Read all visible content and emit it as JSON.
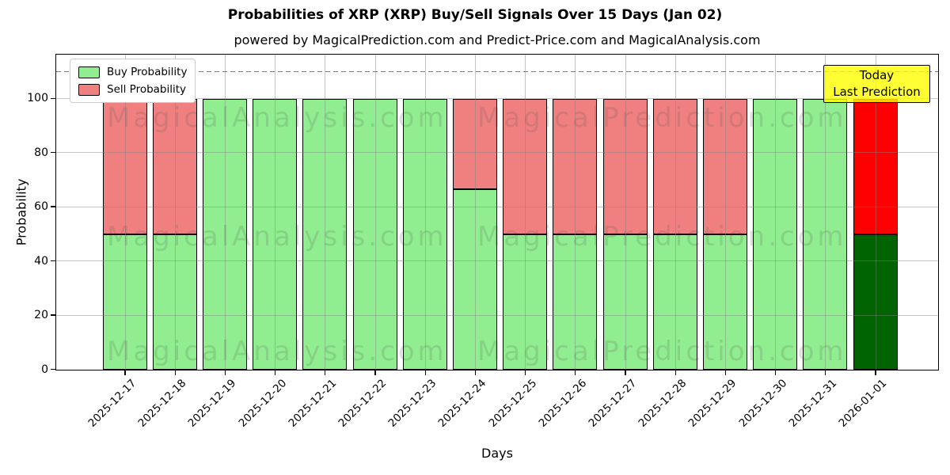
{
  "title": "Probabilities of XRP (XRP) Buy/Sell Signals Over 15 Days (Jan 02)",
  "subtitle": "powered by MagicalPrediction.com and Predict-Price.com and MagicalAnalysis.com",
  "annotation": {
    "line1": "Today",
    "line2": "Last Prediction"
  },
  "watermarks": {
    "left_text": "MagicalAnalysis.com",
    "right_text": "MagicalPrediction.com",
    "rows": 3
  },
  "chart_data": {
    "type": "bar",
    "stacked": true,
    "title": "Probabilities of XRP (XRP) Buy/Sell Signals Over 15 Days (Jan 02)",
    "xlabel": "Days",
    "ylabel": "Probability",
    "ylim": [
      0,
      116
    ],
    "yticks": [
      0,
      20,
      40,
      60,
      80,
      100
    ],
    "grid": true,
    "dashed_line_y": 110,
    "legend_position": "upper left",
    "categories": [
      "2025-12-17",
      "2025-12-18",
      "2025-12-19",
      "2025-12-20",
      "2025-12-21",
      "2025-12-22",
      "2025-12-23",
      "2025-12-24",
      "2025-12-25",
      "2025-12-26",
      "2025-12-27",
      "2025-12-28",
      "2025-12-29",
      "2025-12-30",
      "2025-12-31",
      "2026-01-01"
    ],
    "series": [
      {
        "name": "Buy Probability",
        "color": "#90ee90",
        "values": [
          50,
          50,
          100,
          100,
          100,
          100,
          100,
          66.67,
          50,
          50,
          50,
          50,
          50,
          100,
          100,
          50
        ]
      },
      {
        "name": "Sell Probability",
        "color": "#f08080",
        "values": [
          50,
          50,
          0,
          0,
          0,
          0,
          0,
          33.33,
          50,
          50,
          50,
          50,
          50,
          0,
          0,
          50
        ]
      }
    ],
    "today_index": 15,
    "today_colors": {
      "buy": "#006400",
      "sell": "#ff0000"
    }
  },
  "colors": {
    "background": "#ffffff",
    "bar_edge": "#000000",
    "grid": "#b0b0b0",
    "dashed_line": "#7a7a7a",
    "annotation_bg": "#ffff00",
    "watermark": "#555555"
  }
}
